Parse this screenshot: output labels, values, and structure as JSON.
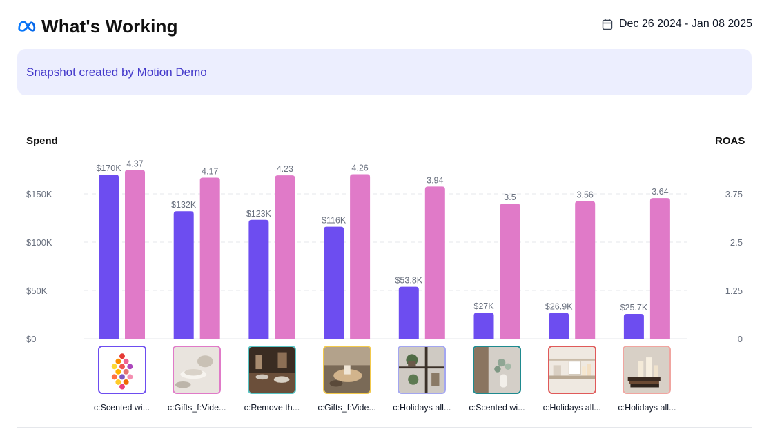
{
  "header": {
    "title": "What's Working",
    "logo_icon": "meta-logo-icon"
  },
  "date_range": {
    "label": "Dec 26 2024 - Jan 08 2025",
    "icon": "calendar-icon"
  },
  "banner": {
    "text": "Snapshot created by Motion Demo"
  },
  "chart_data": {
    "type": "bar",
    "left_axis_title": "Spend",
    "right_axis_title": "ROAS",
    "left_ticks": [
      "$0",
      "$50K",
      "$100K",
      "$150K"
    ],
    "right_ticks": [
      "0",
      "1.25",
      "2.5",
      "3.75"
    ],
    "left_ylim": [
      0,
      200000
    ],
    "right_ylim": [
      0,
      5
    ],
    "grid": true,
    "categories": [
      "c:Scented wi...",
      "c:Gifts_f:Vide...",
      "c:Remove th...",
      "c:Gifts_f:Vide...",
      "c:Holidays all...",
      "c:Scented wi...",
      "c:Holidays all...",
      "c:Holidays all..."
    ],
    "series": [
      {
        "axis": "left",
        "color": "#6d4df0",
        "values": [
          170000,
          132000,
          123000,
          116000,
          53800,
          27000,
          26900,
          25700
        ],
        "labels": [
          "$170K",
          "$132K",
          "$123K",
          "$116K",
          "$53.8K",
          "$27K",
          "$26.9K",
          "$25.7K"
        ]
      },
      {
        "axis": "right",
        "color": "#e07ac8",
        "values": [
          4.37,
          4.17,
          4.23,
          4.26,
          3.94,
          3.5,
          3.56,
          3.64
        ],
        "labels": [
          "4.37",
          "4.17",
          "4.23",
          "4.26",
          "3.94",
          "3.5",
          "3.56",
          "3.64"
        ]
      }
    ]
  },
  "thumbnails": [
    {
      "border": "#6d4df0",
      "icon": "colorful-soaps-thumbnail-icon"
    },
    {
      "border": "#e07ac8",
      "icon": "ceramic-bowls-thumbnail-icon"
    },
    {
      "border": "#58c4c4",
      "icon": "dining-table-thumbnail-icon"
    },
    {
      "border": "#f2c94c",
      "icon": "hands-candle-thumbnail-icon"
    },
    {
      "border": "#a3a6f0",
      "icon": "shelf-plants-thumbnail-icon"
    },
    {
      "border": "#1e8a8f",
      "icon": "vase-flowers-thumbnail-icon"
    },
    {
      "border": "#e05a5a",
      "icon": "shelf-candles-thumbnail-icon"
    },
    {
      "border": "#f0a5a0",
      "icon": "books-candles-thumbnail-icon"
    }
  ]
}
